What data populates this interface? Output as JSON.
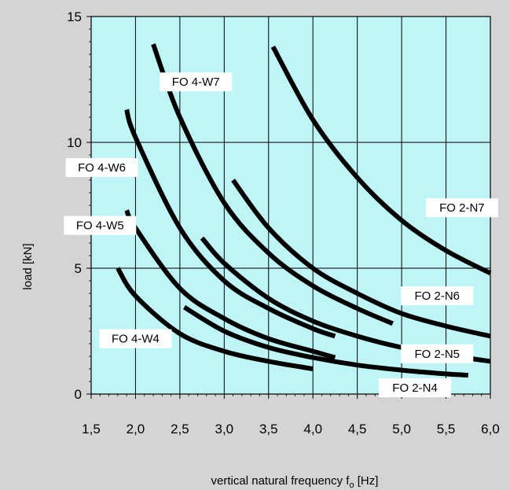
{
  "chart_data": {
    "type": "line",
    "xlabel": "vertical natural frequency f",
    "xlabel_sub": "o",
    "xlabel_unit": " [Hz]",
    "ylabel": "load  [kN]",
    "xlim": [
      1.5,
      6.0
    ],
    "ylim": [
      0,
      15
    ],
    "x_ticks": [
      "1,5",
      "2,0",
      "2,5",
      "3,0",
      "3,5",
      "4,0",
      "4,5",
      "5,0",
      "5,5",
      "6,0"
    ],
    "y_ticks": [
      "0",
      "5",
      "10",
      "15"
    ],
    "grid": true,
    "plot_background": "#bff5f7",
    "series_color": "#000000",
    "series": [
      {
        "name": "FO 4-W4",
        "points": [
          [
            1.8,
            5.0
          ],
          [
            2.0,
            3.9
          ],
          [
            2.5,
            2.4
          ],
          [
            3.0,
            1.7
          ],
          [
            3.5,
            1.3
          ],
          [
            4.0,
            1.0
          ]
        ]
      },
      {
        "name": "FO 4-W5",
        "points": [
          [
            1.9,
            7.3
          ],
          [
            2.0,
            6.6
          ],
          [
            2.5,
            4.2
          ],
          [
            3.0,
            3.0
          ],
          [
            3.5,
            2.2
          ],
          [
            4.0,
            1.7
          ],
          [
            4.25,
            1.45
          ]
        ]
      },
      {
        "name": "FO 4-W6",
        "points": [
          [
            1.9,
            11.3
          ],
          [
            2.0,
            10.2
          ],
          [
            2.5,
            6.6
          ],
          [
            3.0,
            4.5
          ],
          [
            3.5,
            3.4
          ],
          [
            4.0,
            2.6
          ],
          [
            4.25,
            2.3
          ]
        ]
      },
      {
        "name": "FO 4-W7",
        "points": [
          [
            2.2,
            13.9
          ],
          [
            2.5,
            11.0
          ],
          [
            3.0,
            7.6
          ],
          [
            3.5,
            5.6
          ],
          [
            4.0,
            4.3
          ],
          [
            4.5,
            3.4
          ],
          [
            4.9,
            2.8
          ]
        ]
      },
      {
        "name": "FO 2-N4",
        "points": [
          [
            2.55,
            3.45
          ],
          [
            3.0,
            2.5
          ],
          [
            3.5,
            1.85
          ],
          [
            4.0,
            1.45
          ],
          [
            4.5,
            1.15
          ],
          [
            5.0,
            0.95
          ],
          [
            5.5,
            0.8
          ],
          [
            5.75,
            0.75
          ]
        ]
      },
      {
        "name": "FO 2-N5",
        "points": [
          [
            2.75,
            6.2
          ],
          [
            3.0,
            5.2
          ],
          [
            3.5,
            3.8
          ],
          [
            4.0,
            2.9
          ],
          [
            4.5,
            2.3
          ],
          [
            5.0,
            1.85
          ],
          [
            5.5,
            1.55
          ],
          [
            6.0,
            1.3
          ]
        ]
      },
      {
        "name": "FO 2-N6",
        "points": [
          [
            3.1,
            8.5
          ],
          [
            3.5,
            6.6
          ],
          [
            4.0,
            5.0
          ],
          [
            4.5,
            4.0
          ],
          [
            5.0,
            3.2
          ],
          [
            5.5,
            2.7
          ],
          [
            6.0,
            2.3
          ]
        ]
      },
      {
        "name": "FO 2-N7",
        "points": [
          [
            3.55,
            13.8
          ],
          [
            4.0,
            10.9
          ],
          [
            4.5,
            8.6
          ],
          [
            5.0,
            6.9
          ],
          [
            5.5,
            5.7
          ],
          [
            6.0,
            4.8
          ]
        ]
      }
    ],
    "labels": [
      {
        "text": "FO 4-W4",
        "x": 2.0,
        "y": 2.2
      },
      {
        "text": "FO 4-W5",
        "x": 1.6,
        "y": 6.7
      },
      {
        "text": "FO 4-W6",
        "x": 1.62,
        "y": 9.0
      },
      {
        "text": "FO 4-W7",
        "x": 2.68,
        "y": 12.4
      },
      {
        "text": "FO 2-N4",
        "x": 5.15,
        "y": 0.25
      },
      {
        "text": "FO 2-N5",
        "x": 5.4,
        "y": 1.6
      },
      {
        "text": "FO 2-N6",
        "x": 5.4,
        "y": 3.9
      },
      {
        "text": "FO 2-N7",
        "x": 5.68,
        "y": 7.4
      }
    ]
  }
}
